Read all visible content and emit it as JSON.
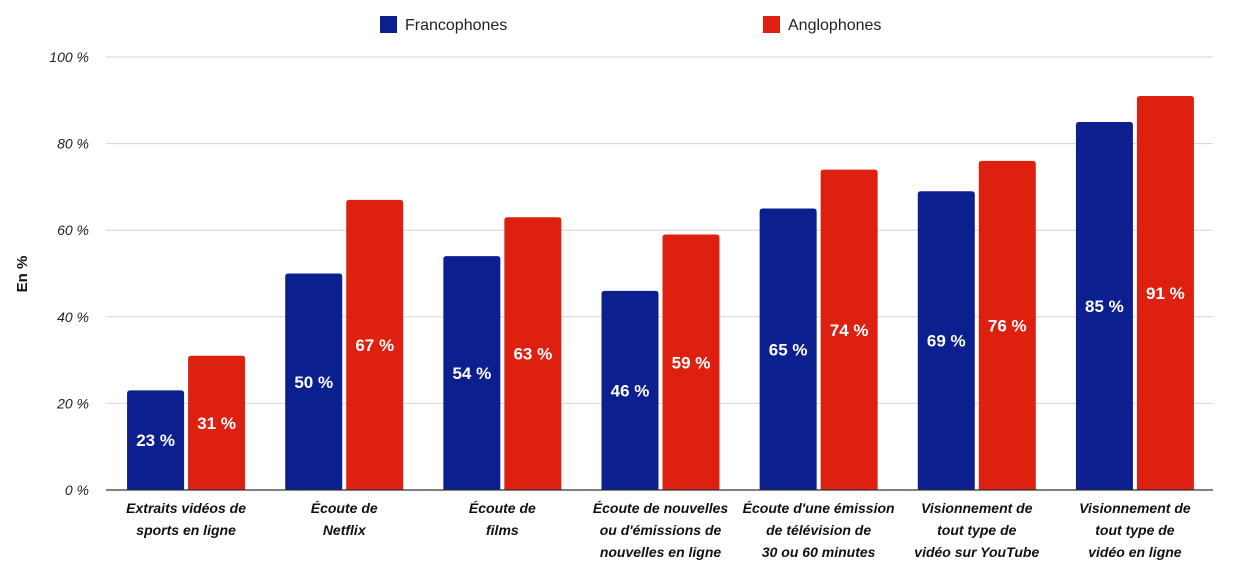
{
  "chart_data": {
    "type": "bar",
    "title": "",
    "xlabel": "",
    "ylabel": "En %",
    "ylim": [
      0,
      100
    ],
    "yticks": [
      0,
      20,
      40,
      60,
      80,
      100
    ],
    "ytick_labels": [
      "0 %",
      "20 %",
      "40 %",
      "60 %",
      "80 %",
      "100 %"
    ],
    "grid": true,
    "legend_position": "top-center",
    "categories": [
      [
        "Extraits vidéos de",
        "sports en ligne"
      ],
      [
        "Écoute de",
        "Netflix"
      ],
      [
        "Écoute de",
        "films"
      ],
      [
        "Écoute de nouvelles",
        "ou d'émissions de",
        "nouvelles en ligne"
      ],
      [
        "Écoute d'une émission",
        "de télévision de",
        "30 ou 60 minutes"
      ],
      [
        "Visionnement de",
        "tout type de",
        "vidéo sur YouTube"
      ],
      [
        "Visionnement de",
        "tout type de",
        "vidéo en ligne"
      ]
    ],
    "series": [
      {
        "name": "Francophones",
        "color": "#0b1f8f",
        "values": [
          23,
          50,
          54,
          46,
          65,
          69,
          85
        ],
        "labels": [
          "23 %",
          "50 %",
          "54 %",
          "46 %",
          "65 %",
          "69 %",
          "85 %"
        ]
      },
      {
        "name": "Anglophones",
        "color": "#dd200f",
        "values": [
          31,
          67,
          63,
          59,
          74,
          76,
          91
        ],
        "labels": [
          "31 %",
          "67 %",
          "63 %",
          "59 %",
          "74 %",
          "76 %",
          "91 %"
        ]
      }
    ]
  }
}
